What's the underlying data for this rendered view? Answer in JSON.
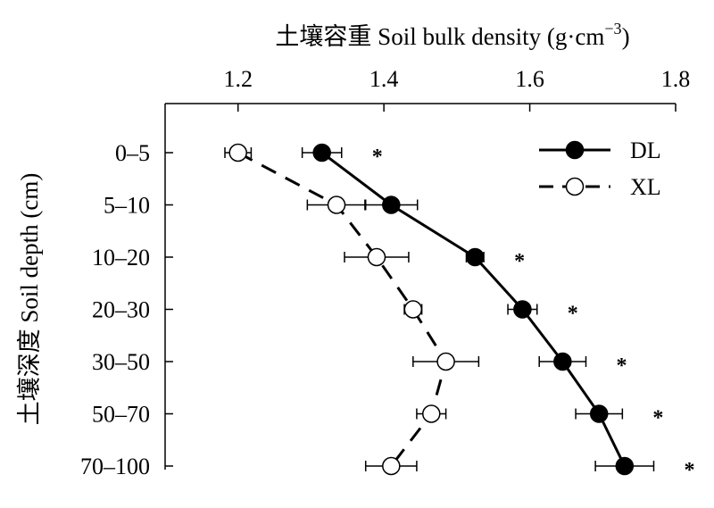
{
  "chart_data": {
    "type": "line",
    "xlabel": "土壤容重  Soil bulk density (g·cm",
    "xlabel_sup": "−3",
    "xlabel_close": ")",
    "ylabel": "土壤深度 Soil depth (cm)",
    "x_axis_position": "top",
    "xlim": [
      1.1,
      1.8
    ],
    "xticks": [
      1.2,
      1.4,
      1.6,
      1.8
    ],
    "xtick_labels": [
      "1.2",
      "1.4",
      "1.6",
      "1.8"
    ],
    "categories": [
      "0–5",
      "5–10",
      "10–20",
      "20–30",
      "30–50",
      "50–70",
      "70–100"
    ],
    "y_direction": "downward",
    "grid": false,
    "legend_position": "top-right",
    "series": [
      {
        "name": "DL",
        "marker": "filled-circle",
        "line": "solid",
        "color": "#000000",
        "values": [
          1.315,
          1.41,
          1.525,
          1.59,
          1.645,
          1.695,
          1.73
        ],
        "errors": [
          0.027,
          0.036,
          0.012,
          0.02,
          0.032,
          0.032,
          0.04
        ]
      },
      {
        "name": "XL",
        "marker": "open-circle",
        "line": "dashed",
        "color": "#000000",
        "values": [
          1.2,
          1.335,
          1.39,
          1.44,
          1.485,
          1.465,
          1.41
        ],
        "errors": [
          0.018,
          0.04,
          0.044,
          0.012,
          0.045,
          0.02,
          0.035
        ]
      }
    ],
    "significance": [
      "*",
      "",
      "*",
      "*",
      "*",
      "*",
      "*"
    ]
  }
}
